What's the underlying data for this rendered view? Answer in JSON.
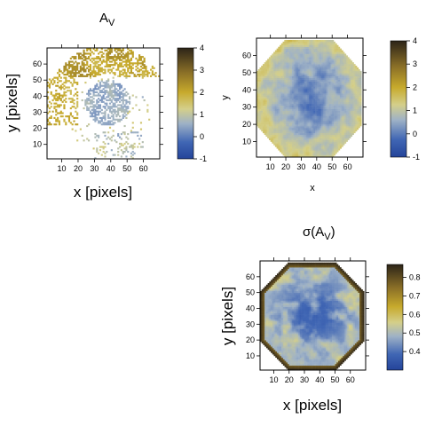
{
  "chart_data": [
    {
      "type": "heatmap",
      "title_main": "A",
      "title_sub": "V",
      "xlabel": "x [pixels]",
      "ylabel": "y [pixels]",
      "xlim": [
        1,
        70
      ],
      "ylim": [
        1,
        70
      ],
      "xticks": [
        "10",
        "20",
        "30",
        "40",
        "50",
        "60"
      ],
      "yticks": [
        "10",
        "20",
        "30",
        "40",
        "50",
        "60"
      ],
      "colorbar": {
        "min": -1,
        "max": 4,
        "ticks": [
          "-1",
          "0",
          "1",
          "2",
          "3",
          "4"
        ]
      },
      "data_description": "sparse measured pixels: blue (~0) in central region, yellow/olive (~2-3) in upper ring"
    },
    {
      "type": "heatmap",
      "title_main": "",
      "title_sub": "",
      "xlabel": "x",
      "ylabel": "y",
      "xlim": [
        1,
        70
      ],
      "ylim": [
        1,
        70
      ],
      "xticks": [
        "10",
        "20",
        "30",
        "40",
        "50",
        "60"
      ],
      "yticks": [
        "10",
        "20",
        "30",
        "40",
        "50",
        "60"
      ],
      "colorbar": {
        "min": -1,
        "max": 4,
        "ticks": [
          "-1",
          "0",
          "1",
          "2",
          "3",
          "4"
        ]
      },
      "data_description": "interpolated octagonal map: blue (~0.5) center, yellow (~2) toward edges"
    },
    {
      "type": "heatmap",
      "title_main": "σ(A",
      "title_sub": "V",
      "title_end": ")",
      "xlabel": "x [pixels]",
      "ylabel": "y [pixels]",
      "xlim": [
        1,
        70
      ],
      "ylim": [
        1,
        70
      ],
      "xticks": [
        "10",
        "20",
        "30",
        "40",
        "50",
        "60"
      ],
      "yticks": [
        "10",
        "20",
        "30",
        "40",
        "50",
        "60"
      ],
      "colorbar": {
        "min": 0.3,
        "max": 0.87,
        "ticks": [
          "0.4",
          "0.5",
          "0.6",
          "0.7",
          "0.8"
        ]
      },
      "data_description": "uncertainty map: blue (~0.4) interior, yellow (~0.55) ring, dark brown (~0.85) octagon boundary"
    }
  ]
}
